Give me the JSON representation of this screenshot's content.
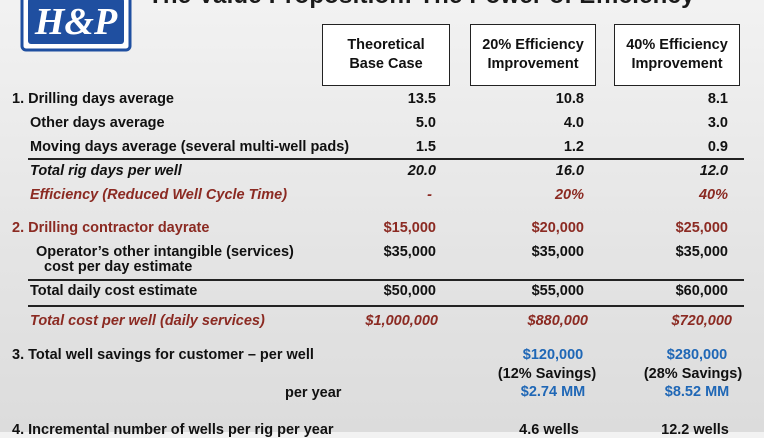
{
  "title": "The Value Proposition: The Power of Efficiency",
  "logo_text": "H&P",
  "headers": {
    "base": [
      "Theoretical",
      "Base Case"
    ],
    "eff20": [
      "20% Efficiency",
      "Improvement"
    ],
    "eff40": [
      "40% Efficiency",
      "Improvement"
    ]
  },
  "rows": {
    "drilling_days": {
      "label": "1. Drilling days average",
      "base": "13.5",
      "eff20": "10.8",
      "eff40": "8.1"
    },
    "other_days": {
      "label": "Other days average",
      "base": "5.0",
      "eff20": "4.0",
      "eff40": "3.0"
    },
    "moving_days": {
      "label": "Moving days average (several multi-well pads)",
      "base": "1.5",
      "eff20": "1.2",
      "eff40": "0.9"
    },
    "total_rig_days": {
      "label": "Total rig days per well",
      "base": "20.0",
      "eff20": "16.0",
      "eff40": "12.0"
    },
    "efficiency": {
      "label": "Efficiency (Reduced Well Cycle Time)",
      "base": "-",
      "eff20": "20%",
      "eff40": "40%"
    },
    "dayrate": {
      "label": "2. Drilling contractor dayrate",
      "base": "$15,000",
      "eff20": "$20,000",
      "eff40": "$25,000"
    },
    "other_intangible": {
      "label_line1": "Operator’s other intangible (services)",
      "label_line2": "cost per day estimate",
      "base": "$35,000",
      "eff20": "$35,000",
      "eff40": "$35,000"
    },
    "daily_cost": {
      "label": "Total daily cost estimate",
      "base": "$50,000",
      "eff20": "$55,000",
      "eff40": "$60,000"
    },
    "cost_per_well": {
      "label": "Total cost per well (daily services)",
      "base": "$1,000,000",
      "eff20": "$880,000",
      "eff40": "$720,000"
    },
    "savings_well": {
      "label": "3. Total well savings for customer – per well",
      "eff20": "$120,000",
      "eff40": "$280,000"
    },
    "savings_pct": {
      "eff20": "(12% Savings)",
      "eff40": "(28% Savings)"
    },
    "savings_year": {
      "label": "per year",
      "eff20": "$2.74 MM",
      "eff40": "$8.52 MM"
    },
    "incremental": {
      "label": "4. Incremental number of wells per rig per year",
      "eff20": "4.6 wells",
      "eff40": "12.2 wells"
    }
  },
  "colors": {
    "red": "#8b2a22",
    "blue": "#1f67b6",
    "logo_blue": "#1f4fa0"
  }
}
